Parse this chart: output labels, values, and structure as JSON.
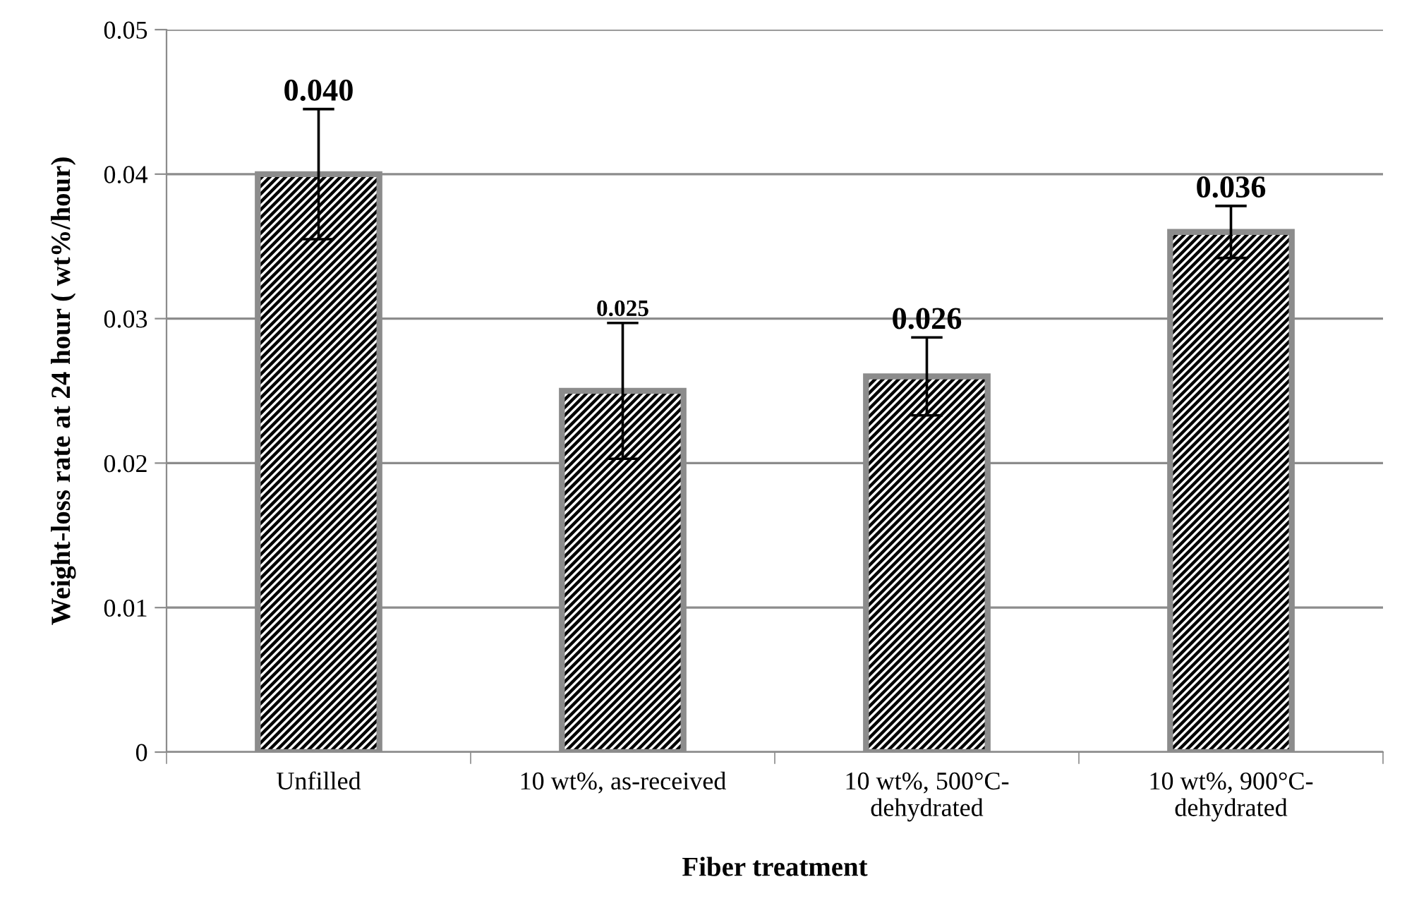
{
  "chart_data": {
    "type": "bar",
    "xlabel": "Fiber treatment",
    "ylabel": "Weight-loss rate at 24 hour ( wt%/hour)",
    "categories": [
      "Unfilled",
      "10 wt%, as-received",
      "10 wt%, 500°C-\ndehydrated",
      "10 wt%, 900°C-\ndehydrated"
    ],
    "values": [
      0.04,
      0.025,
      0.026,
      0.036
    ],
    "errors": [
      0.0045,
      0.0047,
      0.0027,
      0.0018
    ],
    "value_labels": [
      "0.040",
      "0.025",
      "0.026",
      "0.036"
    ],
    "color": "#8c8c8c",
    "ylim": [
      0,
      0.05
    ],
    "yticks": [
      {
        "value": 0,
        "label": "0"
      },
      0.01,
      0.02,
      0.03,
      0.04,
      0.05
    ],
    "grid": "y",
    "legend": false
  }
}
